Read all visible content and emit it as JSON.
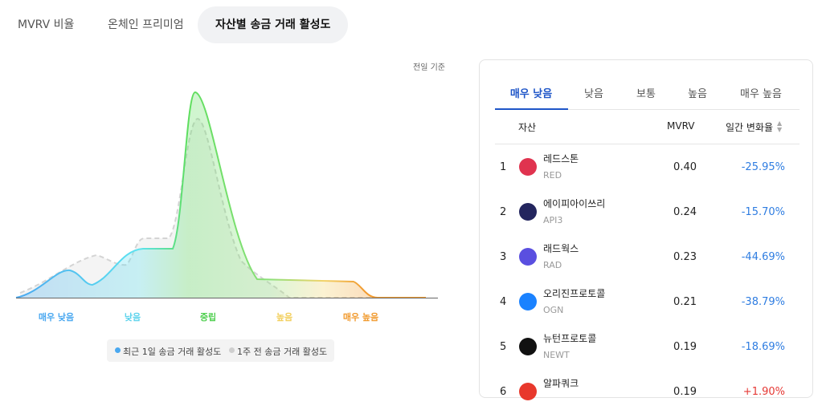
{
  "tabs": {
    "items": [
      "MVRV 비율",
      "온체인 프리미엄",
      "자산별 송금 거래 활성도"
    ],
    "active": 2
  },
  "chart": {
    "note": "전일 기준",
    "zones": [
      {
        "label": "매우 낮음",
        "color": "#4aa8f0"
      },
      {
        "label": "낮음",
        "color": "#5dd3ec"
      },
      {
        "label": "중립",
        "color": "#4fcf4f"
      },
      {
        "label": "높음",
        "color": "#f2cf5c"
      },
      {
        "label": "매우 높음",
        "color": "#f19a2e"
      }
    ],
    "legend": [
      {
        "label": "최근 1일 송금 거래 활성도",
        "color": "#4aa8f0"
      },
      {
        "label": "1주 전 송금 거래 활성도",
        "color": "#cfcfcf"
      }
    ]
  },
  "panel": {
    "tabs": [
      "매우 낮음",
      "낮음",
      "보통",
      "높음",
      "매우 높음"
    ],
    "active_tab": 0,
    "headers": [
      "자산",
      "MVRV",
      "일간 변화율"
    ],
    "rows": [
      {
        "rank": 1,
        "name": "레드스톤",
        "symbol": "RED",
        "mvrv": "0.40",
        "change": "-25.95%",
        "icon": "#e0334f"
      },
      {
        "rank": 2,
        "name": "에이피아이쓰리",
        "symbol": "API3",
        "mvrv": "0.24",
        "change": "-15.70%",
        "icon": "#23255e"
      },
      {
        "rank": 3,
        "name": "래드웍스",
        "symbol": "RAD",
        "mvrv": "0.23",
        "change": "-44.69%",
        "icon": "#5a4fe0"
      },
      {
        "rank": 4,
        "name": "오리진프로토콜",
        "symbol": "OGN",
        "mvrv": "0.21",
        "change": "-38.79%",
        "icon": "#1a82ff"
      },
      {
        "rank": 5,
        "name": "뉴턴프로토콜",
        "symbol": "NEWT",
        "mvrv": "0.19",
        "change": "-18.69%",
        "icon": "#111111"
      },
      {
        "rank": 6,
        "name": "알파쿼크",
        "mvrv": "0.19",
        "change": "+1.90%",
        "icon": "#e8382c"
      }
    ]
  }
}
